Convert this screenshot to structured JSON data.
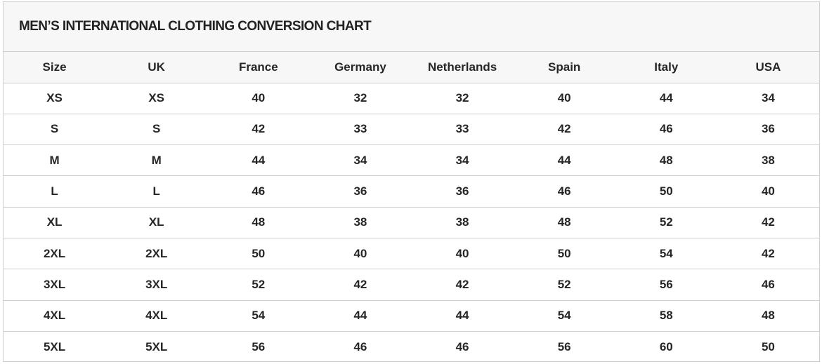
{
  "title": "MEN’S INTERNATIONAL CLOTHING CONVERSION CHART",
  "columns": [
    "Size",
    "UK",
    "France",
    "Germany",
    "Netherlands",
    "Spain",
    "Italy",
    "USA"
  ],
  "rows": [
    [
      "XS",
      "XS",
      "40",
      "32",
      "32",
      "40",
      "44",
      "34"
    ],
    [
      "S",
      "S",
      "42",
      "33",
      "33",
      "42",
      "46",
      "36"
    ],
    [
      "M",
      "M",
      "44",
      "34",
      "34",
      "44",
      "48",
      "38"
    ],
    [
      "L",
      "L",
      "46",
      "36",
      "36",
      "46",
      "50",
      "40"
    ],
    [
      "XL",
      "XL",
      "48",
      "38",
      "38",
      "48",
      "52",
      "42"
    ],
    [
      "2XL",
      "2XL",
      "50",
      "40",
      "40",
      "50",
      "54",
      "42"
    ],
    [
      "3XL",
      "3XL",
      "52",
      "42",
      "42",
      "52",
      "56",
      "46"
    ],
    [
      "4XL",
      "4XL",
      "54",
      "44",
      "44",
      "54",
      "58",
      "48"
    ],
    [
      "5XL",
      "5XL",
      "56",
      "46",
      "46",
      "56",
      "60",
      "50"
    ]
  ]
}
